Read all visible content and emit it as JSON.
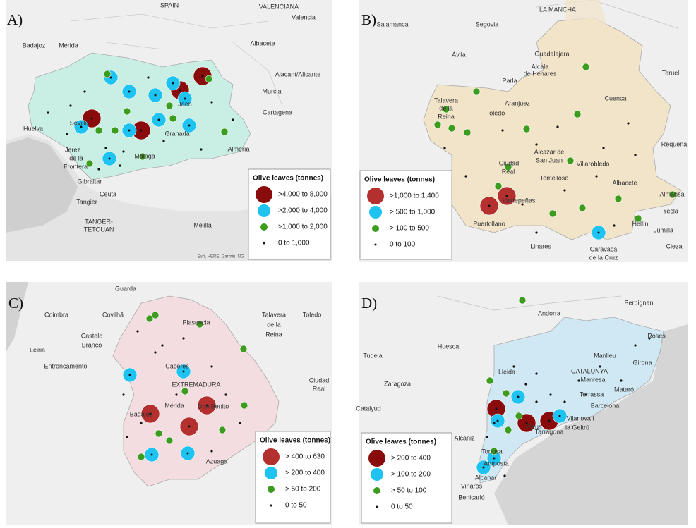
{
  "panels": [
    {
      "label": "A)",
      "places": [
        "SPAIN",
        "VALENCIANA",
        "Valencia",
        "Badajoz",
        "Mérida",
        "Albacete",
        "Alacant/Alicante",
        "Murcia",
        "Cartagena",
        "Jaén",
        "Sevilla",
        "Huelva",
        "Granada",
        "Almería",
        "Jerez",
        "de la",
        "Frontera",
        "Málaga",
        "Gibraltar",
        "Ceuta",
        "Tangier",
        "TANGER-",
        "TETOUAN",
        "Melilla"
      ],
      "attribution": "Esri, HERE, Garmin, NG",
      "legend": {
        "title": "Olive leaves (tonnes)",
        "items": [
          ">4,000 to 8,000",
          ">2,000 to 4,000",
          ">1,000 to 2,000",
          "0 to 1,000"
        ]
      }
    },
    {
      "label": "B)",
      "places": [
        "Salamanca",
        "Segovia",
        "LA MANCHA",
        "Ávila",
        "Guadalajara",
        "Alcala",
        "de Henares",
        "Teruel",
        "Parla",
        "Cuenca",
        "Talavera",
        "de la",
        "Reina",
        "Aranjuez",
        "Toledo",
        "Alcazar de",
        "San Juan",
        "Villarobledo",
        "Requena",
        "Tomelloso",
        "Albacete",
        "Ciudad",
        "Real",
        "Valdepeñas",
        "Almansa",
        "Puertollano",
        "Yecla",
        "Hellín",
        "Jumilla",
        "Linares",
        "Cieza",
        "Caravaca",
        "de la Cruz"
      ],
      "legend": {
        "title": "Olive leaves (tonnes)",
        "items": [
          ">1,000 to 1,400",
          "> 500 to 1,000",
          "> 100 to 500",
          "0 to 100"
        ]
      }
    },
    {
      "label": "C)",
      "places": [
        "Guarda",
        "Coimbra",
        "Covilhã",
        "Plasencia",
        "Talavera",
        "de la",
        "Reina",
        "Toledo",
        "Castelo",
        "Branco",
        "Leiria",
        "Entroncamento",
        "Cáceres",
        "EXTREMADURA",
        "Mérida",
        "Badajoz",
        "Don Benito",
        "Ciudad",
        "Real",
        "Azuaga"
      ],
      "legend": {
        "title": "Olive leaves (tonnes)",
        "items": [
          "> 400 to 630",
          "> 200 to 400",
          "> 50 to 200",
          "0 to 50"
        ]
      }
    },
    {
      "label": "D)",
      "places": [
        "Andorra",
        "Perpignan",
        "Roses",
        "Huesca",
        "Tudela",
        "Manlleu",
        "Girona",
        "Zaragoza",
        "Lleida",
        "CATALUNYA",
        "Manresa",
        "Terrassa",
        "Mataró",
        "Barcelona",
        "Catalyud",
        "Reus",
        "Tarragona",
        "Vilanova i",
        "la Geltrú",
        "Alcañiz",
        "Tortosa",
        "Amposta",
        "Alcanar",
        "Vinaròs",
        "Benicarló"
      ],
      "legend": {
        "title": "Olive leaves (tonnes)",
        "items": [
          "> 200 to 400",
          "> 100 to 200",
          "> 50 to 100",
          "0 to 50"
        ]
      }
    }
  ]
}
